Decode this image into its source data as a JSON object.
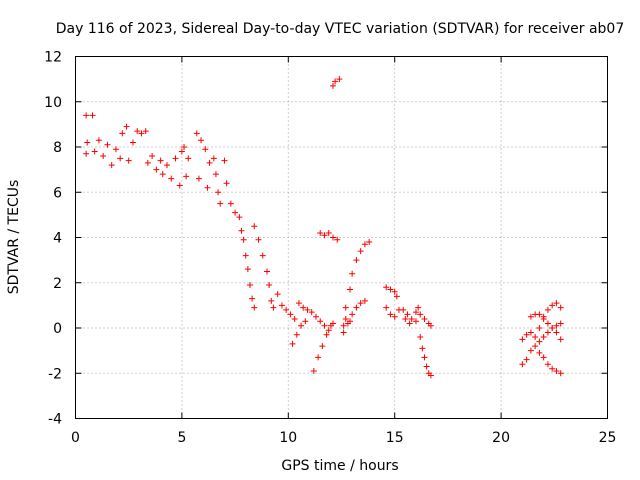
{
  "chart_data": {
    "type": "scatter",
    "title": "Day 116 of 2023, Sidereal Day-to-day VTEC variation (SDTVAR) for receiver ab07",
    "xlabel": "GPS time / hours",
    "ylabel": "SDTVAR / TECUs",
    "xlim": [
      0,
      25
    ],
    "ylim": [
      -4,
      12
    ],
    "xticks": [
      "0",
      "5",
      "10",
      "15",
      "20",
      "25"
    ],
    "yticks": [
      "-4",
      "-2",
      "0",
      "2",
      "4",
      "6",
      "8",
      "10",
      "12"
    ],
    "grid": true,
    "marker": "plus",
    "color": "#ff0000",
    "series": [
      {
        "points": [
          [
            0.5,
            9.4
          ],
          [
            0.55,
            8.2
          ],
          [
            0.5,
            7.7
          ],
          [
            0.8,
            9.4
          ],
          [
            0.9,
            7.8
          ],
          [
            1.1,
            8.3
          ],
          [
            1.3,
            7.6
          ],
          [
            1.5,
            8.1
          ],
          [
            1.7,
            7.2
          ],
          [
            1.9,
            7.9
          ],
          [
            2.1,
            7.5
          ],
          [
            2.2,
            8.6
          ],
          [
            2.4,
            8.9
          ],
          [
            2.5,
            7.4
          ],
          [
            2.7,
            8.2
          ],
          [
            2.9,
            8.7
          ],
          [
            3.1,
            8.6
          ],
          [
            3.3,
            8.7
          ],
          [
            3.4,
            7.3
          ],
          [
            3.6,
            7.6
          ],
          [
            3.8,
            7.0
          ],
          [
            4.0,
            7.4
          ],
          [
            4.1,
            6.8
          ],
          [
            4.3,
            7.2
          ],
          [
            4.5,
            6.6
          ],
          [
            4.7,
            7.5
          ],
          [
            4.9,
            6.3
          ],
          [
            5.0,
            7.8
          ],
          [
            5.1,
            8.0
          ],
          [
            5.2,
            6.7
          ],
          [
            5.3,
            7.5
          ],
          [
            5.7,
            8.6
          ],
          [
            5.9,
            8.3
          ],
          [
            6.1,
            7.9
          ],
          [
            6.3,
            7.3
          ],
          [
            6.5,
            7.5
          ],
          [
            5.8,
            6.6
          ],
          [
            6.2,
            6.2
          ],
          [
            6.6,
            6.8
          ],
          [
            6.7,
            6.0
          ],
          [
            6.8,
            5.5
          ],
          [
            7.0,
            7.4
          ],
          [
            7.1,
            6.4
          ],
          [
            7.3,
            5.5
          ],
          [
            7.5,
            5.1
          ],
          [
            7.7,
            4.9
          ],
          [
            7.8,
            4.3
          ],
          [
            7.9,
            3.9
          ],
          [
            8.0,
            3.2
          ],
          [
            8.1,
            2.6
          ],
          [
            8.2,
            1.9
          ],
          [
            8.3,
            1.3
          ],
          [
            8.4,
            0.9
          ],
          [
            8.4,
            4.5
          ],
          [
            8.6,
            3.9
          ],
          [
            8.8,
            3.2
          ],
          [
            9.0,
            2.5
          ],
          [
            9.1,
            1.9
          ],
          [
            9.2,
            1.2
          ],
          [
            9.3,
            0.9
          ],
          [
            9.5,
            1.5
          ],
          [
            9.7,
            1.0
          ],
          [
            9.9,
            0.8
          ],
          [
            10.1,
            0.6
          ],
          [
            10.3,
            0.4
          ],
          [
            10.5,
            1.1
          ],
          [
            10.7,
            0.9
          ],
          [
            10.9,
            0.8
          ],
          [
            11.1,
            0.7
          ],
          [
            11.3,
            0.5
          ],
          [
            11.5,
            0.3
          ],
          [
            11.7,
            0.1
          ],
          [
            11.9,
            -0.1
          ],
          [
            12.1,
            0.2
          ],
          [
            10.2,
            -0.7
          ],
          [
            10.4,
            -0.3
          ],
          [
            10.6,
            0.1
          ],
          [
            10.8,
            0.3
          ],
          [
            11.2,
            -1.9
          ],
          [
            11.4,
            -1.3
          ],
          [
            11.6,
            -0.8
          ],
          [
            11.8,
            -0.3
          ],
          [
            12.0,
            0.1
          ],
          [
            11.5,
            4.2
          ],
          [
            11.7,
            4.1
          ],
          [
            11.9,
            4.2
          ],
          [
            12.1,
            4.0
          ],
          [
            12.3,
            3.9
          ],
          [
            12.1,
            10.7
          ],
          [
            12.2,
            10.9
          ],
          [
            12.4,
            11.0
          ],
          [
            12.6,
            -0.2
          ],
          [
            12.8,
            0.2
          ],
          [
            13.0,
            0.6
          ],
          [
            13.2,
            0.9
          ],
          [
            13.4,
            1.1
          ],
          [
            13.6,
            1.2
          ],
          [
            12.7,
            0.9
          ],
          [
            12.9,
            1.7
          ],
          [
            13.0,
            2.4
          ],
          [
            13.2,
            3.0
          ],
          [
            13.4,
            3.4
          ],
          [
            13.6,
            3.7
          ],
          [
            13.8,
            3.8
          ],
          [
            12.6,
            0.1
          ],
          [
            12.7,
            0.4
          ],
          [
            12.9,
            0.3
          ],
          [
            14.6,
            1.8
          ],
          [
            14.8,
            1.7
          ],
          [
            15.0,
            1.6
          ],
          [
            15.1,
            1.4
          ],
          [
            14.6,
            0.9
          ],
          [
            14.8,
            0.6
          ],
          [
            15.0,
            0.5
          ],
          [
            15.2,
            0.8
          ],
          [
            15.4,
            0.8
          ],
          [
            15.6,
            0.6
          ],
          [
            15.8,
            0.4
          ],
          [
            16.0,
            0.7
          ],
          [
            16.1,
            0.9
          ],
          [
            16.2,
            0.6
          ],
          [
            16.4,
            0.4
          ],
          [
            16.6,
            0.2
          ],
          [
            16.7,
            0.1
          ],
          [
            15.5,
            0.4
          ],
          [
            15.7,
            0.2
          ],
          [
            16.0,
            0.3
          ],
          [
            16.2,
            -0.4
          ],
          [
            16.3,
            -0.9
          ],
          [
            16.4,
            -1.3
          ],
          [
            16.5,
            -1.7
          ],
          [
            16.6,
            -2.0
          ],
          [
            16.7,
            -2.1
          ],
          [
            21.0,
            -0.5
          ],
          [
            21.2,
            -0.3
          ],
          [
            21.4,
            -0.2
          ],
          [
            21.6,
            -0.4
          ],
          [
            21.8,
            0.0
          ],
          [
            22.0,
            0.4
          ],
          [
            22.2,
            0.8
          ],
          [
            22.4,
            1.0
          ],
          [
            22.6,
            1.1
          ],
          [
            22.8,
            0.9
          ],
          [
            21.0,
            -1.6
          ],
          [
            21.2,
            -1.4
          ],
          [
            21.4,
            -1.0
          ],
          [
            21.6,
            -0.8
          ],
          [
            21.8,
            -0.6
          ],
          [
            22.0,
            -0.4
          ],
          [
            22.2,
            -0.2
          ],
          [
            22.4,
            0.0
          ],
          [
            22.6,
            0.1
          ],
          [
            22.8,
            0.2
          ],
          [
            21.4,
            0.5
          ],
          [
            21.6,
            0.6
          ],
          [
            21.8,
            0.6
          ],
          [
            22.0,
            0.5
          ],
          [
            22.2,
            0.2
          ],
          [
            22.4,
            0.0
          ],
          [
            22.6,
            -0.2
          ],
          [
            22.8,
            -0.5
          ],
          [
            21.8,
            -1.1
          ],
          [
            22.0,
            -1.3
          ],
          [
            22.2,
            -1.6
          ],
          [
            22.4,
            -1.8
          ],
          [
            22.6,
            -1.9
          ],
          [
            22.8,
            -2.0
          ]
        ]
      }
    ]
  }
}
